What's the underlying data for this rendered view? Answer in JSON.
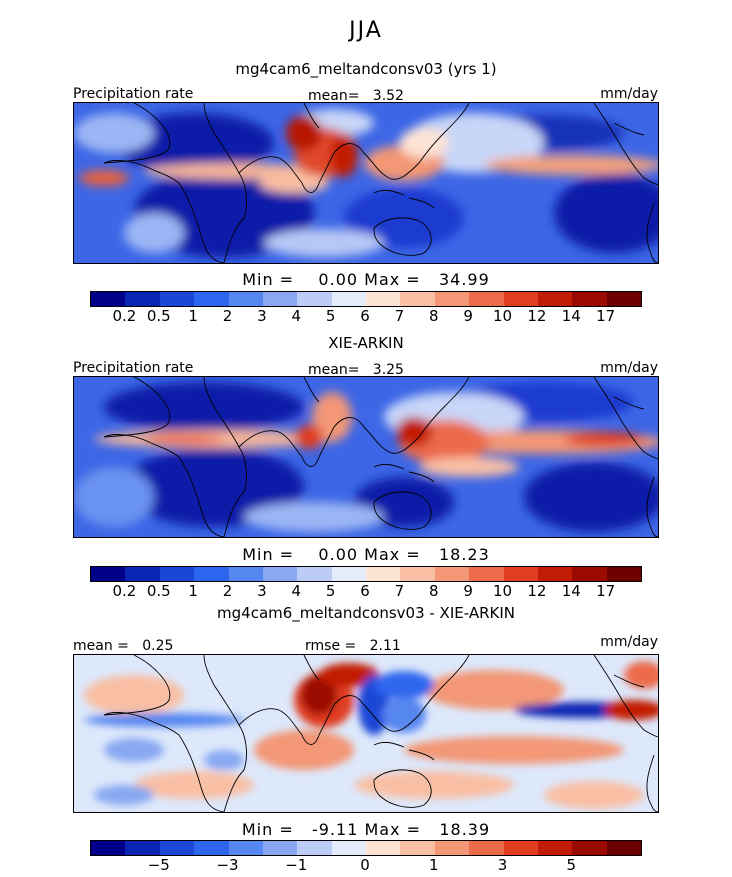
{
  "season": "JJA",
  "palettes": {
    "precip": [
      "#00008b",
      "#0a25b4",
      "#1b46d6",
      "#2d66ee",
      "#5686f0",
      "#88a8f2",
      "#bcccf6",
      "#e2ecfb",
      "#fde3d4",
      "#f9bfa4",
      "#f39776",
      "#ec6b4b",
      "#e03e20",
      "#c21b06",
      "#9b0a00",
      "#6f0000"
    ],
    "diff": [
      "#00008b",
      "#0a25b4",
      "#1b46d6",
      "#2d66ee",
      "#5686f0",
      "#88a8f2",
      "#bcccf6",
      "#e2ecfb",
      "#fde3d4",
      "#f9bfa4",
      "#f39776",
      "#ec6b4b",
      "#e03e20",
      "#c21b06",
      "#9b0a00",
      "#6f0000"
    ]
  },
  "panels": [
    {
      "title": "mg4cam6_meltandconsv03 (yrs 1)",
      "left_label": "Precipitation rate",
      "center_label": "mean=",
      "center_value": "3.52",
      "right_label": "mm/day",
      "min_label": "Min =",
      "min_value": "0.00",
      "max_label": "Max =",
      "max_value": "34.99",
      "ticks": [
        "0.2",
        "0.5",
        "1",
        "2",
        "3",
        "4",
        "5",
        "6",
        "7",
        "8",
        "9",
        "10",
        "12",
        "14",
        "17"
      ]
    },
    {
      "title": "XIE-ARKIN",
      "left_label": "Precipitation rate",
      "center_label": "mean=",
      "center_value": "3.25",
      "right_label": "mm/day",
      "min_label": "Min =",
      "min_value": "0.00",
      "max_label": "Max =",
      "max_value": "18.23",
      "ticks": [
        "0.2",
        "0.5",
        "1",
        "2",
        "3",
        "4",
        "5",
        "6",
        "7",
        "8",
        "9",
        "10",
        "12",
        "14",
        "17"
      ]
    },
    {
      "title": "mg4cam6_meltandconsv03 - XIE-ARKIN",
      "left_label": "mean =",
      "left_value": "0.25",
      "center_label": "rmse =",
      "center_value": "2.11",
      "right_label": "mm/day",
      "min_label": "Min =",
      "min_value": "-9.11",
      "max_label": "Max =",
      "max_value": "18.39",
      "ticks": [
        "−5",
        "−3",
        "−1",
        "0",
        "1",
        "3",
        "5"
      ]
    }
  ]
}
